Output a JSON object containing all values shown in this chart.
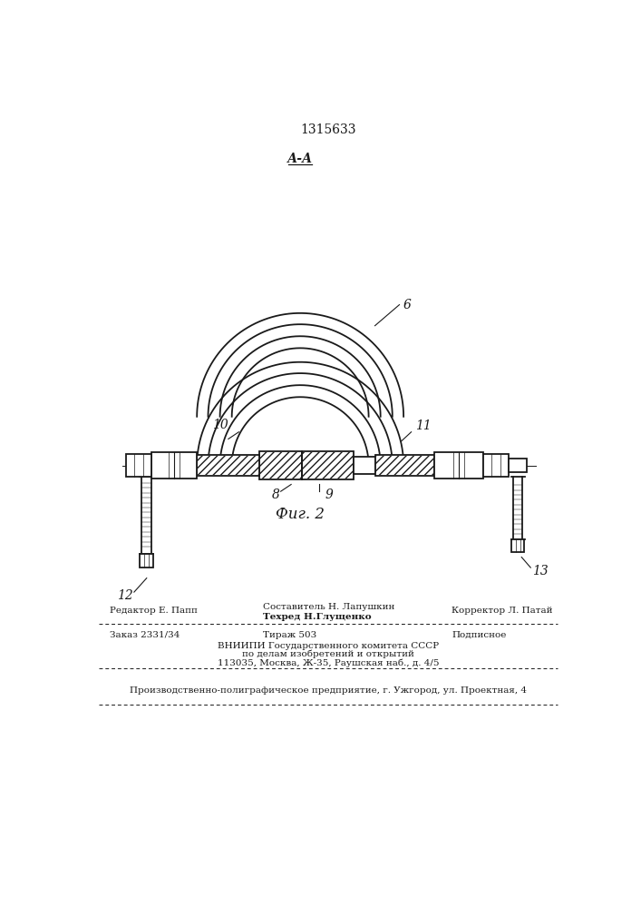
{
  "patent_number": "1315633",
  "section_label": "А-А",
  "fig_label": "Фиг. 2",
  "bg_color": "#ffffff",
  "line_color": "#1a1a1a",
  "footer_line3": "Производственно-полиграфическое предприятие, г. Ужгород, ул. Проектная, 4"
}
